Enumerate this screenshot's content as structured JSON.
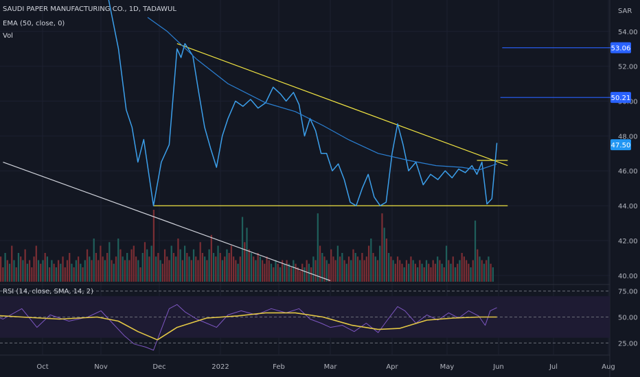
{
  "chart_data": {
    "type": "line",
    "title": "SAUDI PAPER MANUFACTURING CO., 1D, TADAWUL",
    "indicators": [
      "EMA (50, close, 0)",
      "Vol"
    ],
    "currency": "SAR",
    "price_axis": {
      "ylim": [
        39.6,
        55.8
      ],
      "ticks": [
        "54.00",
        "52.00",
        "50.00",
        "48.00",
        "46.00",
        "44.00",
        "42.00",
        "40.00"
      ]
    },
    "time_axis": {
      "labels": [
        "Oct",
        "Nov",
        "Dec",
        "2022",
        "Feb",
        "Mar",
        "Apr",
        "May",
        "Jun",
        "Jul",
        "Aug"
      ],
      "dates": [
        "2021-10-01",
        "2021-11-01",
        "2021-12-01",
        "2022-01-01",
        "2022-02-01",
        "2022-03-01",
        "2022-04-01",
        "2022-05-01",
        "2022-06-01",
        "2022-07-01",
        "2022-08-01"
      ]
    },
    "price_labels": [
      {
        "text": "53.06",
        "value": 53.06,
        "color": "#2962ff"
      },
      {
        "text": "50.21",
        "value": 50.21,
        "color": "#2962ff"
      },
      {
        "text": "47.50",
        "value": 47.5,
        "color": "#2196f3"
      }
    ],
    "series": [
      {
        "name": "close",
        "color": "#3ca0ec",
        "points": [
          [
            "2021-11-05",
            55.8
          ],
          [
            "2021-11-10",
            53.0
          ],
          [
            "2021-11-14",
            49.5
          ],
          [
            "2021-11-17",
            48.5
          ],
          [
            "2021-11-20",
            46.5
          ],
          [
            "2021-11-23",
            47.8
          ],
          [
            "2021-11-28",
            44.0
          ],
          [
            "2021-12-02",
            46.5
          ],
          [
            "2021-12-06",
            47.5
          ],
          [
            "2021-12-10",
            53.0
          ],
          [
            "2021-12-12",
            52.5
          ],
          [
            "2021-12-14",
            53.3
          ],
          [
            "2021-12-18",
            52.6
          ],
          [
            "2021-12-21",
            50.5
          ],
          [
            "2021-12-24",
            48.5
          ],
          [
            "2021-12-27",
            47.3
          ],
          [
            "2021-12-30",
            46.2
          ],
          [
            "2022-01-02",
            48.0
          ],
          [
            "2022-01-05",
            49.0
          ],
          [
            "2022-01-09",
            50.0
          ],
          [
            "2022-01-13",
            49.7
          ],
          [
            "2022-01-17",
            50.1
          ],
          [
            "2022-01-21",
            49.6
          ],
          [
            "2022-01-25",
            49.9
          ],
          [
            "2022-01-29",
            50.8
          ],
          [
            "2022-02-02",
            50.4
          ],
          [
            "2022-02-05",
            50.0
          ],
          [
            "2022-02-09",
            50.5
          ],
          [
            "2022-02-12",
            49.8
          ],
          [
            "2022-02-15",
            48.0
          ],
          [
            "2022-02-18",
            49.0
          ],
          [
            "2022-02-21",
            48.3
          ],
          [
            "2022-02-24",
            47.0
          ],
          [
            "2022-02-27",
            47.0
          ],
          [
            "2022-03-02",
            46.0
          ],
          [
            "2022-03-05",
            46.4
          ],
          [
            "2022-03-08",
            45.5
          ],
          [
            "2022-03-11",
            44.2
          ],
          [
            "2022-03-14",
            44.0
          ],
          [
            "2022-03-17",
            45.0
          ],
          [
            "2022-03-20",
            45.8
          ],
          [
            "2022-03-23",
            44.5
          ],
          [
            "2022-03-26",
            44.0
          ],
          [
            "2022-03-29",
            44.2
          ],
          [
            "2022-04-01",
            47.0
          ],
          [
            "2022-04-04",
            48.7
          ],
          [
            "2022-04-07",
            47.5
          ],
          [
            "2022-04-10",
            46.0
          ],
          [
            "2022-04-14",
            46.5
          ],
          [
            "2022-04-18",
            45.2
          ],
          [
            "2022-04-22",
            45.8
          ],
          [
            "2022-04-26",
            45.5
          ],
          [
            "2022-04-30",
            46.0
          ],
          [
            "2022-05-04",
            45.6
          ],
          [
            "2022-05-08",
            46.1
          ],
          [
            "2022-05-12",
            45.9
          ],
          [
            "2022-05-16",
            46.3
          ],
          [
            "2022-05-19",
            45.8
          ],
          [
            "2022-05-22",
            46.5
          ],
          [
            "2022-05-25",
            44.1
          ],
          [
            "2022-05-28",
            44.4
          ],
          [
            "2022-05-31",
            47.6
          ]
        ]
      },
      {
        "name": "EMA (50, close, 0)",
        "color": "#2b80d4",
        "points": [
          [
            "2021-11-25",
            54.8
          ],
          [
            "2021-12-05",
            54.0
          ],
          [
            "2021-12-20",
            52.4
          ],
          [
            "2022-01-05",
            51.0
          ],
          [
            "2022-01-25",
            49.9
          ],
          [
            "2022-02-10",
            49.4
          ],
          [
            "2022-02-25",
            48.6
          ],
          [
            "2022-03-10",
            47.8
          ],
          [
            "2022-03-25",
            47.0
          ],
          [
            "2022-04-10",
            46.6
          ],
          [
            "2022-04-25",
            46.3
          ],
          [
            "2022-05-10",
            46.2
          ],
          [
            "2022-05-20",
            46.05
          ],
          [
            "2022-05-31",
            46.4
          ]
        ]
      }
    ],
    "annotations": [
      {
        "kind": "resistance trendline",
        "color": "#f2e542",
        "points": [
          [
            "2021-12-10",
            53.3
          ],
          [
            "2022-06-06",
            46.3
          ]
        ]
      },
      {
        "kind": "support line",
        "color": "#f2e542",
        "points": [
          [
            "2021-11-28",
            44.0
          ],
          [
            "2022-06-06",
            44.0
          ]
        ]
      },
      {
        "kind": "flag top",
        "color": "#f2e542",
        "points": [
          [
            "2022-05-19",
            46.6
          ],
          [
            "2022-06-06",
            46.6
          ]
        ]
      },
      {
        "kind": "long downtrend",
        "color": "#d1d4dc",
        "points": [
          [
            "2021-09-10",
            46.5
          ],
          [
            "2022-03-01",
            39.7
          ]
        ]
      },
      {
        "kind": "horizontal ray",
        "color": "#2962ff",
        "points": [
          [
            "2022-06-03",
            53.06
          ],
          [
            "2022-08-05",
            53.06
          ]
        ]
      },
      {
        "kind": "horizontal ray",
        "color": "#2962ff",
        "points": [
          [
            "2022-06-02",
            50.21
          ],
          [
            "2022-08-05",
            50.21
          ]
        ]
      }
    ],
    "volume": {
      "colors": [
        "#7a2e34",
        "#1f5f5b"
      ],
      "bars": [
        0.35,
        0.2,
        0.4,
        0.3,
        0.25,
        0.5,
        0.3,
        0.2,
        0.4,
        0.35,
        0.3,
        0.45,
        0.25,
        0.3,
        0.2,
        0.35,
        0.5,
        0.3,
        0.25,
        0.3,
        0.4,
        0.35,
        0.2,
        0.3,
        0.25,
        0.2,
        0.3,
        0.25,
        0.35,
        0.2,
        0.3,
        0.4,
        0.25,
        0.2,
        0.3,
        0.35,
        0.25,
        0.2,
        0.3,
        0.45,
        0.35,
        0.3,
        0.6,
        0.4,
        0.3,
        0.5,
        0.35,
        0.3,
        0.4,
        0.55,
        0.3,
        0.25,
        0.35,
        0.6,
        0.45,
        0.35,
        0.3,
        0.4,
        0.3,
        0.45,
        0.5,
        0.35,
        0.3,
        0.2,
        0.4,
        0.55,
        0.45,
        0.35,
        0.5,
        1.0,
        0.35,
        0.4,
        0.3,
        0.25,
        0.45,
        0.35,
        0.3,
        0.5,
        0.4,
        0.35,
        0.6,
        0.45,
        0.3,
        0.5,
        0.4,
        0.35,
        0.3,
        0.45,
        0.35,
        0.3,
        0.55,
        0.4,
        0.35,
        0.3,
        0.45,
        0.65,
        0.4,
        0.35,
        0.5,
        0.4,
        0.3,
        0.35,
        0.45,
        0.4,
        0.5,
        0.35,
        0.3,
        0.25,
        0.35,
        0.9,
        0.55,
        0.75,
        0.45,
        0.4,
        0.35,
        0.3,
        0.4,
        0.35,
        0.3,
        0.25,
        0.35,
        0.3,
        0.25,
        0.2,
        0.3,
        0.25,
        0.2,
        0.3,
        0.25,
        0.3,
        0.25,
        0.2,
        0.3,
        0.25,
        0.2,
        0.15,
        0.25,
        0.2,
        0.3,
        0.25,
        0.2,
        0.35,
        0.3,
        0.95,
        0.5,
        0.4,
        0.35,
        0.3,
        0.25,
        0.45,
        0.35,
        0.3,
        0.5,
        0.35,
        0.4,
        0.3,
        0.25,
        0.35,
        0.3,
        0.45,
        0.4,
        0.35,
        0.3,
        0.4,
        0.3,
        0.35,
        0.5,
        0.6,
        0.4,
        0.35,
        0.3,
        0.5,
        0.95,
        0.75,
        0.6,
        0.4,
        0.35,
        0.3,
        0.25,
        0.35,
        0.3,
        0.25,
        0.2,
        0.3,
        0.25,
        0.35,
        0.3,
        0.25,
        0.2,
        0.3,
        0.25,
        0.2,
        0.3,
        0.25,
        0.2,
        0.3,
        0.25,
        0.35,
        0.3,
        0.25,
        0.2,
        0.5,
        0.3,
        0.25,
        0.35,
        0.2,
        0.25,
        0.3,
        0.4,
        0.35,
        0.3,
        0.25,
        0.2,
        0.3,
        0.85,
        0.45,
        0.35,
        0.3,
        0.25,
        0.3,
        0.35,
        0.25,
        0.2
      ]
    },
    "rsi": {
      "label": "RSI (14, close, SMA, 14, 2)",
      "ylim": [
        14,
        80
      ],
      "band": [
        30,
        70
      ],
      "ticks": [
        "75.00",
        "50.00",
        "25.00"
      ],
      "series": [
        {
          "name": "RSI",
          "color": "#7e57c2",
          "points": [
            [
              "2021-09-01",
              54
            ],
            [
              "2021-09-10",
              48
            ],
            [
              "2021-09-20",
              58
            ],
            [
              "2021-09-28",
              40
            ],
            [
              "2021-10-05",
              52
            ],
            [
              "2021-10-15",
              46
            ],
            [
              "2021-10-25",
              50
            ],
            [
              "2021-11-01",
              56
            ],
            [
              "2021-11-08",
              42
            ],
            [
              "2021-11-13",
              32
            ],
            [
              "2021-11-18",
              24
            ],
            [
              "2021-11-24",
              21
            ],
            [
              "2021-11-28",
              18
            ],
            [
              "2021-12-02",
              38
            ],
            [
              "2021-12-06",
              58
            ],
            [
              "2021-12-10",
              62
            ],
            [
              "2021-12-14",
              55
            ],
            [
              "2021-12-20",
              48
            ],
            [
              "2021-12-25",
              44
            ],
            [
              "2021-12-30",
              40
            ],
            [
              "2022-01-05",
              52
            ],
            [
              "2022-01-12",
              56
            ],
            [
              "2022-01-20",
              52
            ],
            [
              "2022-01-28",
              58
            ],
            [
              "2022-02-05",
              54
            ],
            [
              "2022-02-12",
              58
            ],
            [
              "2022-02-18",
              48
            ],
            [
              "2022-02-24",
              44
            ],
            [
              "2022-03-01",
              40
            ],
            [
              "2022-03-07",
              42
            ],
            [
              "2022-03-13",
              36
            ],
            [
              "2022-03-19",
              44
            ],
            [
              "2022-03-25",
              35
            ],
            [
              "2022-03-30",
              48
            ],
            [
              "2022-04-04",
              60
            ],
            [
              "2022-04-08",
              56
            ],
            [
              "2022-04-14",
              44
            ],
            [
              "2022-04-20",
              52
            ],
            [
              "2022-04-26",
              47
            ],
            [
              "2022-05-02",
              54
            ],
            [
              "2022-05-08",
              49
            ],
            [
              "2022-05-14",
              56
            ],
            [
              "2022-05-20",
              51
            ],
            [
              "2022-05-24",
              42
            ],
            [
              "2022-05-27",
              56
            ],
            [
              "2022-05-31",
              59
            ]
          ]
        },
        {
          "name": "SMA",
          "color": "#e5c945",
          "points": [
            [
              "2021-09-01",
              52
            ],
            [
              "2021-09-20",
              50
            ],
            [
              "2021-10-10",
              48
            ],
            [
              "2021-10-30",
              50
            ],
            [
              "2021-11-10",
              46
            ],
            [
              "2021-11-20",
              36
            ],
            [
              "2021-11-30",
              28
            ],
            [
              "2021-12-10",
              40
            ],
            [
              "2021-12-25",
              49
            ],
            [
              "2022-01-10",
              51
            ],
            [
              "2022-01-25",
              54
            ],
            [
              "2022-02-10",
              54
            ],
            [
              "2022-02-25",
              50
            ],
            [
              "2022-03-12",
              42
            ],
            [
              "2022-03-25",
              38
            ],
            [
              "2022-04-05",
              39
            ],
            [
              "2022-04-20",
              47
            ],
            [
              "2022-05-05",
              49
            ],
            [
              "2022-05-20",
              50
            ],
            [
              "2022-05-31",
              50
            ]
          ]
        }
      ]
    }
  }
}
